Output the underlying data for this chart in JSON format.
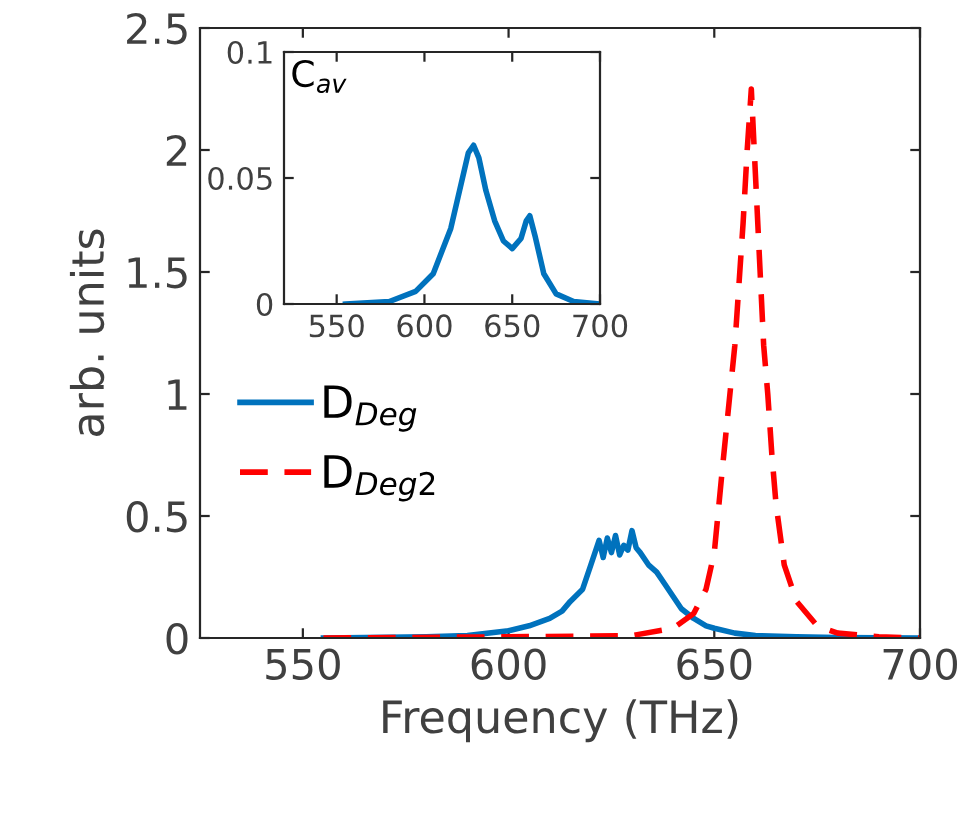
{
  "chart_data": [
    {
      "type": "line",
      "xlabel": "Frequency (THz)",
      "ylabel": "arb. units",
      "xlim": [
        525,
        700
      ],
      "ylim": [
        0,
        2.5
      ],
      "xticks": [
        550,
        600,
        650,
        700
      ],
      "yticks": [
        0,
        0.5,
        1,
        1.5,
        2,
        2.5
      ],
      "grid": false,
      "legend": "left",
      "marker": "none",
      "series": [
        {
          "name": "D$_{Deg}$",
          "color": "#0072bd",
          "line_style": "solid",
          "x": [
            555,
            580,
            590,
            600,
            605,
            610,
            613,
            615,
            618,
            620,
            622,
            623,
            624,
            625,
            626,
            627,
            628,
            629,
            630,
            631,
            632,
            634,
            636,
            638,
            640,
            642,
            645,
            648,
            650,
            655,
            660,
            670,
            680,
            700
          ],
          "values": [
            0,
            0.005,
            0.01,
            0.03,
            0.05,
            0.08,
            0.11,
            0.15,
            0.2,
            0.3,
            0.4,
            0.33,
            0.41,
            0.35,
            0.42,
            0.34,
            0.38,
            0.36,
            0.44,
            0.37,
            0.35,
            0.3,
            0.27,
            0.22,
            0.17,
            0.12,
            0.08,
            0.05,
            0.04,
            0.02,
            0.01,
            0.005,
            0.002,
            0
          ]
        },
        {
          "name": "D$_{Deg2}$",
          "color": "#ff0000",
          "line_style": "dashed",
          "x": [
            555,
            600,
            620,
            630,
            640,
            645,
            648,
            650,
            652,
            655,
            657,
            658,
            659,
            660,
            661,
            662,
            663,
            664,
            665,
            667,
            670,
            675,
            680,
            690,
            700
          ],
          "values": [
            0,
            0.005,
            0.008,
            0.01,
            0.04,
            0.1,
            0.2,
            0.35,
            0.7,
            1.2,
            1.7,
            2.0,
            2.25,
            1.9,
            1.55,
            1.2,
            1.0,
            0.75,
            0.55,
            0.3,
            0.15,
            0.05,
            0.02,
            0.005,
            0
          ]
        }
      ]
    },
    {
      "type": "line",
      "annotations": [
        "C$_{av}$"
      ],
      "xlim": [
        520,
        700
      ],
      "ylim": [
        0,
        0.1
      ],
      "xticks": [
        550,
        600,
        650,
        700
      ],
      "yticks": [
        0,
        0.05,
        0.1
      ],
      "grid": false,
      "marker": "none",
      "series": [
        {
          "color": "#0072bd",
          "line_style": "solid",
          "x": [
            555,
            580,
            595,
            605,
            615,
            620,
            625,
            628,
            631,
            635,
            640,
            645,
            650,
            655,
            658,
            660,
            663,
            668,
            675,
            685,
            700
          ],
          "values": [
            0,
            0.001,
            0.005,
            0.012,
            0.03,
            0.045,
            0.06,
            0.063,
            0.058,
            0.045,
            0.033,
            0.025,
            0.022,
            0.026,
            0.033,
            0.035,
            0.027,
            0.012,
            0.004,
            0.001,
            0
          ]
        }
      ]
    }
  ]
}
